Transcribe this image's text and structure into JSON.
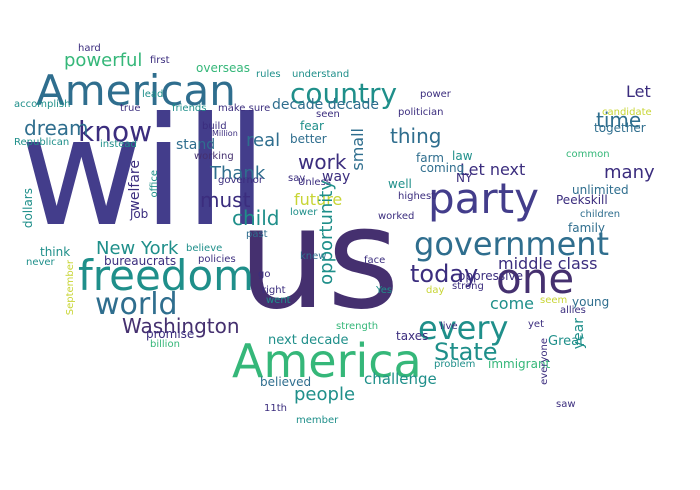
{
  "cloud": {
    "colors": [
      "#3b2d7e",
      "#433d8b",
      "#2f6e8e",
      "#1f8f8a",
      "#35b779",
      "#7ad151",
      "#c8d535"
    ],
    "words": {
      "will": "will",
      "us": "us",
      "america": "America",
      "american": "American",
      "freedom": "freedom",
      "party": "party",
      "government": "government",
      "one": "one",
      "world": "world",
      "every": "every",
      "country": "country",
      "know": "know",
      "washington": "Washington",
      "state": "State",
      "today": "today",
      "new_york": "New York",
      "powerful": "powerful",
      "opportunity": "opportunity",
      "people": "people",
      "dream": "dream",
      "work": "work",
      "thing": "thing",
      "time": "time",
      "let": "Let",
      "next": "next",
      "must": "must",
      "child": "child",
      "future": "future",
      "thank": "Thank",
      "real": "real",
      "middle_class": "middle class",
      "decade_decade": "decade decade",
      "small": "small",
      "many": "many",
      "together": "together",
      "next_decade": "next decade",
      "let_next": "Let next",
      "come": "come",
      "oppressive": "oppressive",
      "challenge": "challenge",
      "great": "Great",
      "taxes": "taxes",
      "immigrant": "immigrant",
      "believed": "believed",
      "stand": "stand",
      "better": "better",
      "fear": "fear",
      "way": "way",
      "farm": "farm",
      "coming": "coming",
      "law": "law",
      "ny": "NY",
      "well": "well",
      "highest": "highest",
      "worked": "worked",
      "peekskill": "Peekskill",
      "unlimited": "unlimited",
      "family": "family",
      "young": "young",
      "year": "year",
      "strong": "strong",
      "allies": "allies",
      "think": "think",
      "welfare": "welfare",
      "job": "job",
      "office": "office",
      "believe": "believe",
      "policies": "policies",
      "bureaucrats": "bureaucrats",
      "promise": "promise",
      "billion": "billion",
      "strength": "strength",
      "went": "went",
      "right": "right",
      "go": "go",
      "face": "face",
      "knew": "knew",
      "build": "build",
      "working": "working",
      "governor": "governor",
      "hard": "hard",
      "first": "first",
      "true": "true",
      "lead": "lead",
      "friends": "friends",
      "make_sure": "make sure",
      "instead": "instead",
      "republican": "Republican",
      "accomplish": "accomplish",
      "dollars": "dollars",
      "never": "never",
      "september": "September",
      "overseas": "overseas",
      "rules": "rules",
      "understand": "understand",
      "seen": "seen",
      "unless": "Unless",
      "say": "say",
      "lower": "lower",
      "politician": "politician",
      "common": "common",
      "candidate": "candidate",
      "children": "children",
      "member": "member",
      "11th": "11th",
      "past": "past",
      "saw": "saw",
      "everyone": "everyone",
      "yet": "yet",
      "live": "live",
      "problem": "problem",
      "day": "day",
      "power": "power",
      "million": "Million",
      "yes": "Yes",
      "power2": "power",
      "seem": "seem"
    }
  }
}
